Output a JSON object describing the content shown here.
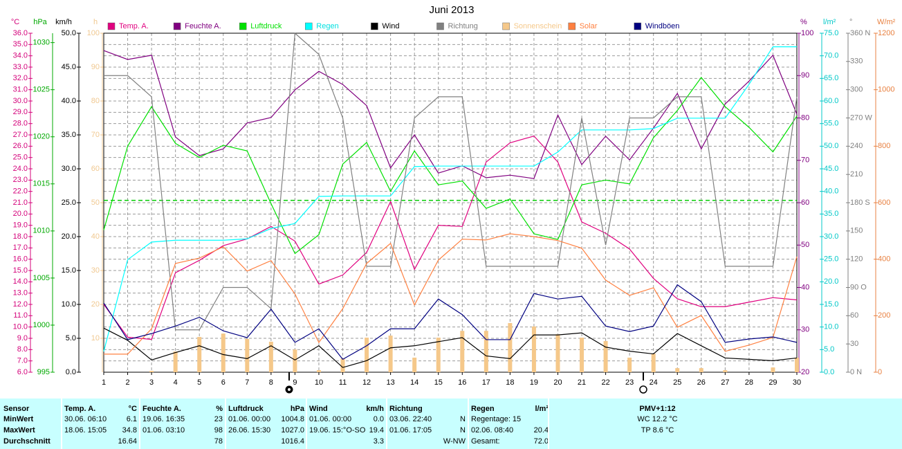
{
  "chart_data": {
    "type": "line",
    "title": "Juni 2013",
    "categories": [
      "1",
      "2",
      "3",
      "4",
      "5",
      "6",
      "7",
      "8",
      "9",
      "10",
      "11",
      "12",
      "13",
      "14",
      "15",
      "16",
      "17",
      "18",
      "19",
      "20",
      "21",
      "22",
      "23",
      "24",
      "25",
      "26",
      "27",
      "28",
      "29",
      "30"
    ],
    "grid": true,
    "axes": {
      "temp": {
        "label": "°C",
        "side": "left",
        "color": "#d4007a",
        "lim": [
          6,
          36
        ],
        "grid": true,
        "ticks": [
          {
            "value": 6,
            "label": "6.0"
          },
          {
            "value": 7,
            "label": "7.0"
          },
          {
            "value": 8,
            "label": "8.0"
          },
          {
            "value": 9,
            "label": "9.0"
          },
          {
            "value": 10,
            "label": "10.0"
          },
          {
            "value": 11,
            "label": "11.0"
          },
          {
            "value": 12,
            "label": "12.0"
          },
          {
            "value": 13,
            "label": "13.0"
          },
          {
            "value": 14,
            "label": "14.0"
          },
          {
            "value": 15,
            "label": "15.0"
          },
          {
            "value": 16,
            "label": "16.0"
          },
          {
            "value": 17,
            "label": "17.0"
          },
          {
            "value": 18,
            "label": "18.0"
          },
          {
            "value": 19,
            "label": "19.0"
          },
          {
            "value": 20,
            "label": "20.0"
          },
          {
            "value": 21,
            "label": "21.0"
          },
          {
            "value": 22,
            "label": "22.0"
          },
          {
            "value": 23,
            "label": "23.0"
          },
          {
            "value": 24,
            "label": "24.0"
          },
          {
            "value": 25,
            "label": "25.0"
          },
          {
            "value": 26,
            "label": "26.0"
          },
          {
            "value": 27,
            "label": "27.0"
          },
          {
            "value": 28,
            "label": "28.0"
          },
          {
            "value": 29,
            "label": "29.0"
          },
          {
            "value": 30,
            "label": "30.0"
          },
          {
            "value": 31,
            "label": "31.0"
          },
          {
            "value": 32,
            "label": "32.0"
          },
          {
            "value": 33,
            "label": "33.0"
          },
          {
            "value": 34,
            "label": "34.0"
          },
          {
            "value": 35,
            "label": "35.0"
          },
          {
            "value": 36,
            "label": "36.0"
          }
        ]
      },
      "press": {
        "label": "hPa",
        "side": "left",
        "color": "#00a800",
        "lim": [
          995,
          1031
        ],
        "ticks": [
          995,
          1000,
          1005,
          1010,
          1015,
          1020,
          1025,
          1030
        ]
      },
      "wind": {
        "label": "km/h",
        "side": "left",
        "color": "#000000",
        "lim": [
          0,
          50
        ],
        "ticks": [
          {
            "value": 0,
            "label": "0.0"
          },
          {
            "value": 5,
            "label": "5.0"
          },
          {
            "value": 10,
            "label": "10.0"
          },
          {
            "value": 15,
            "label": "15.0"
          },
          {
            "value": 20,
            "label": "20.0"
          },
          {
            "value": 25,
            "label": "25.0"
          },
          {
            "value": 30,
            "label": "30.0"
          },
          {
            "value": 35,
            "label": "35.0"
          },
          {
            "value": 40,
            "label": "40.0"
          },
          {
            "value": 45,
            "label": "45.0"
          },
          {
            "value": 50,
            "label": "50.0"
          }
        ]
      },
      "sun": {
        "label": "h",
        "side": "left",
        "color": "#f0c890",
        "lim": [
          0,
          100
        ],
        "ticks": [
          10,
          20,
          30,
          40,
          50,
          60,
          70,
          80,
          90,
          100
        ]
      },
      "hum": {
        "label": "%",
        "side": "right",
        "color": "#800080",
        "lim": [
          20,
          100
        ],
        "ticks": [
          20,
          30,
          40,
          50,
          60,
          70,
          80,
          90,
          100
        ]
      },
      "rain": {
        "label": "l/m²",
        "side": "right",
        "color": "#00c8c8",
        "lim": [
          0,
          75
        ],
        "ticks": [
          {
            "value": 0,
            "label": "0.0"
          },
          {
            "value": 5,
            "label": "5.0"
          },
          {
            "value": 10,
            "label": "10.0"
          },
          {
            "value": 15,
            "label": "15.0"
          },
          {
            "value": 20,
            "label": "20.0"
          },
          {
            "value": 25,
            "label": "25.0"
          },
          {
            "value": 30,
            "label": "30.0"
          },
          {
            "value": 35,
            "label": "35.0"
          },
          {
            "value": 40,
            "label": "40.0"
          },
          {
            "value": 45,
            "label": "45.0"
          },
          {
            "value": 50,
            "label": "50.0"
          },
          {
            "value": 55,
            "label": "55.0"
          },
          {
            "value": 60,
            "label": "60.0"
          },
          {
            "value": 65,
            "label": "65.0"
          },
          {
            "value": 70,
            "label": "70.0"
          },
          {
            "value": 75,
            "label": "75.0"
          }
        ]
      },
      "dir": {
        "label": "°",
        "side": "right",
        "color": "#808080",
        "lim": [
          0,
          360
        ],
        "ticks": [
          {
            "value": 0,
            "label": "0 N"
          },
          30,
          60,
          {
            "value": 90,
            "label": "90 O"
          },
          120,
          150,
          {
            "value": 180,
            "label": "180 S"
          },
          210,
          240,
          {
            "value": 270,
            "label": "270 W"
          },
          300,
          330,
          {
            "value": 360,
            "label": "360 N"
          }
        ]
      },
      "solar": {
        "label": "W/m²",
        "side": "right",
        "color": "#e88040",
        "lim": [
          0,
          1200
        ],
        "ticks": [
          0,
          200,
          400,
          600,
          800,
          1000,
          1200
        ]
      }
    },
    "reference_lines": [
      {
        "axis": "press",
        "value": 1013.25,
        "color": "#00cc00"
      }
    ],
    "series": [
      {
        "name": "Temp. A.",
        "color": "#e0007f",
        "axis": "temp",
        "kind": "line",
        "values": [
          12.0,
          9.1,
          8.9,
          14.8,
          15.9,
          17.2,
          17.8,
          18.9,
          17.6,
          13.8,
          14.6,
          16.6,
          21.1,
          15.1,
          19.0,
          18.9,
          24.6,
          26.3,
          26.9,
          24.6,
          19.3,
          18.3,
          16.9,
          14.3,
          12.5,
          11.8,
          11.8,
          12.2,
          12.6,
          12.4
        ]
      },
      {
        "name": "Feuchte A.",
        "color": "#800080",
        "axis": "hum",
        "kind": "line",
        "values": [
          95.9,
          93.8,
          94.8,
          75.5,
          71.1,
          72.7,
          78.8,
          80.1,
          86.6,
          91.0,
          87.9,
          82.9,
          68.2,
          76.0,
          67.0,
          68.7,
          65.9,
          66.5,
          65.7,
          80.7,
          69.0,
          75.7,
          70.1,
          77.6,
          85.8,
          72.7,
          83.3,
          88.7,
          94.8,
          80.9
        ]
      },
      {
        "name": "Luftdruck",
        "color": "#00e000",
        "axis": "press",
        "kind": "line",
        "values": [
          1010.1,
          1019.0,
          1023.2,
          1019.3,
          1017.8,
          1019.1,
          1018.5,
          1012.9,
          1007.6,
          1009.6,
          1017.1,
          1019.4,
          1014.2,
          1018.5,
          1014.9,
          1015.3,
          1012.4,
          1013.4,
          1009.7,
          1009.1,
          1014.9,
          1015.4,
          1015.0,
          1019.9,
          1022.8,
          1026.3,
          1023.2,
          1021.0,
          1018.4,
          1022.2
        ]
      },
      {
        "name": "Regen",
        "color": "#00ffff",
        "axis": "rain",
        "kind": "line",
        "values": [
          4.6,
          24.9,
          28.8,
          29.2,
          29.2,
          29.2,
          29.5,
          31.8,
          32.9,
          38.9,
          39.0,
          39.0,
          39.0,
          45.5,
          45.6,
          45.6,
          45.6,
          45.6,
          45.6,
          48.7,
          53.6,
          53.6,
          53.6,
          53.9,
          56.2,
          56.2,
          56.2,
          63.7,
          72.0,
          72.0
        ]
      },
      {
        "name": "Wind",
        "color": "#000000",
        "axis": "wind",
        "kind": "line",
        "values": [
          6.5,
          4.7,
          1.8,
          2.9,
          3.9,
          2.6,
          2.0,
          3.9,
          1.8,
          3.9,
          0.7,
          1.7,
          3.6,
          3.9,
          4.5,
          5.1,
          2.4,
          2.0,
          5.5,
          5.5,
          5.8,
          3.7,
          3.1,
          2.7,
          5.7,
          3.9,
          2.1,
          1.9,
          1.7,
          2.1
        ]
      },
      {
        "name": "Richtung",
        "color": "#808080",
        "axis": "dir",
        "kind": "line",
        "values": [
          315,
          315,
          292.5,
          45,
          45,
          90,
          90,
          67.5,
          360,
          337.5,
          270,
          112.5,
          112.5,
          270,
          292.5,
          292.5,
          112.5,
          112.5,
          112.5,
          112.5,
          270,
          135,
          270,
          270,
          292.5,
          292.5,
          112.5,
          112.5,
          112.5,
          292.5
        ]
      },
      {
        "name": "Sonnenschein",
        "color": "#f5c88a",
        "axis": "sun",
        "kind": "bar",
        "values": [
          0,
          0,
          0.4,
          6.1,
          10.4,
          11.4,
          9.8,
          9.0,
          6.7,
          0.6,
          4.1,
          10.2,
          10.8,
          4.3,
          10.2,
          12.2,
          12.2,
          14.5,
          13.5,
          11.2,
          10.2,
          9.2,
          4.3,
          5.5,
          1.2,
          1.2,
          0.6,
          0,
          1.4,
          4.3
        ]
      },
      {
        "name": "Solar",
        "color": "#ff8040",
        "axis": "solar",
        "kind": "line",
        "values": [
          64,
          64,
          154,
          385,
          404,
          444,
          358,
          395,
          277,
          105,
          225,
          385,
          456,
          238,
          397,
          471,
          468,
          490,
          480,
          466,
          439,
          326,
          272,
          299,
          159,
          201,
          74,
          96,
          123,
          409
        ]
      },
      {
        "name": "Windböen",
        "color": "#000080",
        "axis": "wind",
        "kind": "line",
        "values": [
          10.2,
          4.8,
          5.7,
          6.8,
          8.1,
          6.1,
          5.1,
          9.3,
          4.4,
          6.4,
          1.9,
          3.9,
          6.4,
          6.4,
          10.8,
          8.5,
          4.8,
          4.8,
          11.6,
          10.8,
          11.2,
          6.8,
          6.0,
          6.8,
          12.9,
          10.4,
          4.4,
          4.9,
          5.2,
          4.4
        ]
      }
    ]
  },
  "table": {
    "columns": [
      {
        "left": [
          "Sensor",
          "MinWert",
          "MaxWert",
          "Durchschnitt"
        ]
      },
      {
        "left": [
          "Temp. A.",
          "30.06. 06:10",
          "18.06. 15:05",
          null
        ],
        "right": [
          "°C",
          "6.1",
          "34.8",
          "16.64"
        ]
      },
      {
        "left": [
          "Feuchte A.",
          "19.06. 16:35",
          "01.06. 03:10",
          null
        ],
        "right": [
          "%",
          "23",
          "98",
          "78"
        ]
      },
      {
        "left": [
          "Luftdruck",
          "01.06. 00:00",
          "26.06. 15:30",
          null
        ],
        "right": [
          "hPa",
          "1004.8",
          "1027.0",
          "1016.4"
        ]
      },
      {
        "left": [
          "Wind",
          "01.06. 00:00",
          "19.06. 15:°O-SO",
          null
        ],
        "right": [
          "km/h",
          "0.0",
          "19.4",
          "3.3"
        ]
      },
      {
        "left": [
          "Richtung",
          "03.06. 22:40",
          "01.06. 17:05",
          null
        ],
        "right": [
          null,
          "N",
          "N",
          "W-NW"
        ]
      },
      {
        "left": [
          "Regen",
          "Regentage: 15",
          "02.06. 08:40",
          "Gesamt:"
        ],
        "right": [
          "l/m²",
          null,
          "20.4",
          "72.0"
        ]
      },
      {
        "center": [
          "PMV+1:12",
          "WC 12.2 °C",
          "TP 8.6 °C"
        ]
      }
    ]
  }
}
